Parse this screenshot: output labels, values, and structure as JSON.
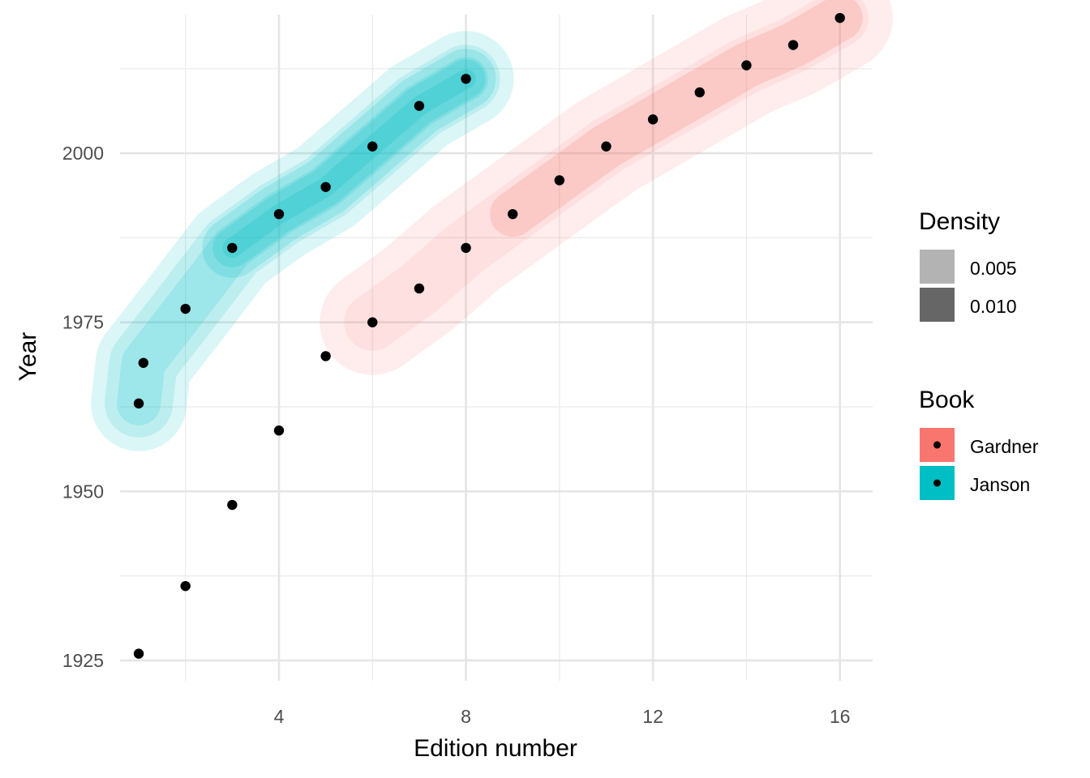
{
  "chart_data": {
    "type": "scatter",
    "title": "",
    "xlabel": "Edition number",
    "ylabel": "Year",
    "xlim": [
      0.6,
      16.7
    ],
    "ylim": [
      1922,
      2020.5
    ],
    "x_ticks": [
      4,
      8,
      12,
      16
    ],
    "x_tick_labels": [
      "4",
      "8",
      "12",
      "16"
    ],
    "y_ticks": [
      1925,
      1950,
      1975,
      2000
    ],
    "y_tick_labels": [
      "1925",
      "1950",
      "1975",
      "2000"
    ],
    "grid": true,
    "series": [
      {
        "name": "Gardner",
        "color": "#F8766D",
        "points": [
          [
            1,
            1926
          ],
          [
            2,
            1936
          ],
          [
            3,
            1948
          ],
          [
            4,
            1959
          ],
          [
            5,
            1970
          ],
          [
            6,
            1975
          ],
          [
            7,
            1980
          ],
          [
            8,
            1986
          ],
          [
            9,
            1991
          ],
          [
            10,
            1996
          ],
          [
            11,
            2001
          ],
          [
            12,
            2005
          ],
          [
            13,
            2009
          ],
          [
            14,
            2013
          ],
          [
            15,
            2016
          ],
          [
            16,
            2020
          ]
        ]
      },
      {
        "name": "Janson",
        "color": "#00BFC4",
        "points": [
          [
            1,
            1963
          ],
          [
            1.1,
            1969
          ],
          [
            2,
            1977
          ],
          [
            3,
            1986
          ],
          [
            4,
            1991
          ],
          [
            5,
            1995
          ],
          [
            6,
            2001
          ],
          [
            7,
            2007
          ],
          [
            8,
            2011
          ]
        ]
      }
    ],
    "legends": {
      "position": "right",
      "density": {
        "title": "Density",
        "entries": [
          {
            "label": "0.005",
            "color": "#b3b3b3"
          },
          {
            "label": "0.010",
            "color": "#666666"
          }
        ]
      },
      "book": {
        "title": "Book",
        "entries": [
          {
            "label": "Gardner",
            "color": "#F8766D"
          },
          {
            "label": "Janson",
            "color": "#00BFC4"
          }
        ]
      }
    }
  }
}
